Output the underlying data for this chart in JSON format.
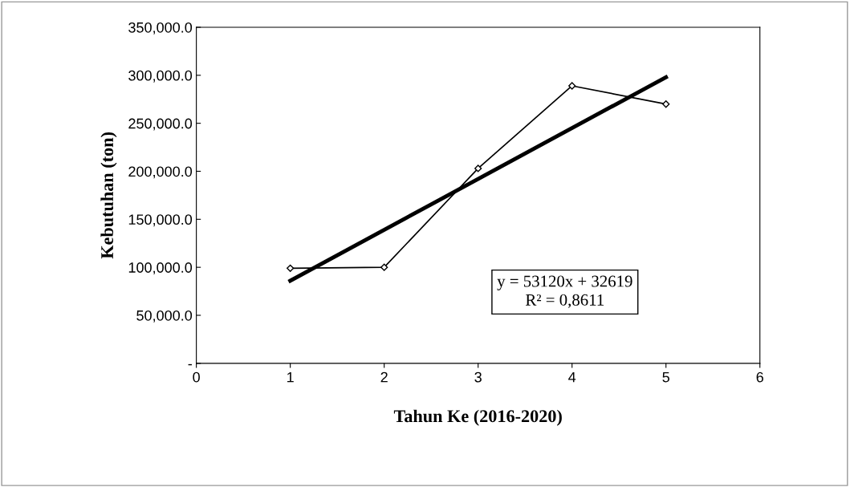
{
  "chart_data": {
    "type": "line",
    "xlabel": "Tahun Ke (2016-2020)",
    "ylabel": "Kebutuhan (ton)",
    "x": [
      1,
      2,
      3,
      4,
      5
    ],
    "series": [
      {
        "color": "#000000",
        "values": [
          99000,
          100000,
          203000,
          289000,
          270000
        ],
        "marker": "diamond"
      },
      {
        "type": "line",
        "color": "#000000",
        "x": [
          1,
          5
        ],
        "values": [
          86000,
          298000
        ],
        "marker": "none"
      }
    ],
    "xlim": [
      0,
      6
    ],
    "xticks": [
      0,
      1,
      2,
      3,
      4,
      5,
      6
    ],
    "ylim": [
      0,
      350000
    ],
    "yticks": [
      {
        "value": 0,
        "label": "-"
      },
      {
        "value": 50000,
        "label": "50,000.0"
      },
      {
        "value": 100000,
        "label": "100,000.0"
      },
      {
        "value": 150000,
        "label": "150,000.0"
      },
      {
        "value": 200000,
        "label": "200,000.0"
      },
      {
        "value": 250000,
        "label": "250,000.0"
      },
      {
        "value": 300000,
        "label": "300,000.0"
      },
      {
        "value": 350000,
        "label": "350,000.0"
      }
    ],
    "annotations": [
      "y = 53120x + 32619\nR² = 0,8611"
    ],
    "grid": false,
    "legend": false
  }
}
